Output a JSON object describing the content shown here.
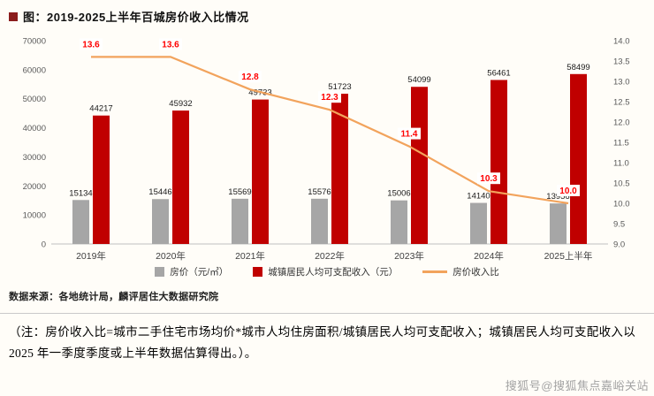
{
  "page": {
    "title": "图：2019-2025上半年百城房价收入比情况",
    "source": "数据来源：各地统计局，麟评居住大数据研究院",
    "note": "（注：房价收入比=城市二手住宅市场均价*城市人均住房面积/城镇居民人均可支配收入；城镇居民人均可支配收入以 2025 年一季度季度或上半年数据估算得出。）。",
    "watermark": "搜狐号@搜狐焦点嘉峪关站"
  },
  "chart_data": {
    "type": "bar+line",
    "title": "2019-2025上半年百城房价收入比情况",
    "categories": [
      "2019年",
      "2020年",
      "2021年",
      "2022年",
      "2023年",
      "2024年",
      "2025上半年"
    ],
    "series": [
      {
        "name": "房价（元/㎡）",
        "type": "bar",
        "axis": "left",
        "color": "#a6a6a6",
        "values": [
          15134,
          15446,
          15569,
          15576,
          15006,
          14140,
          13956
        ]
      },
      {
        "name": "城镇居民人均可支配收入（元）",
        "type": "bar",
        "axis": "left",
        "color": "#c00000",
        "values": [
          44217,
          45932,
          49733,
          51723,
          54099,
          56461,
          58499
        ]
      },
      {
        "name": "房价收入比",
        "type": "line",
        "axis": "right",
        "color": "#f2a35c",
        "label_color": "#ff0000",
        "values": [
          13.6,
          13.6,
          12.8,
          12.3,
          11.4,
          10.3,
          10.0
        ]
      }
    ],
    "left_axis": {
      "min": 0,
      "max": 70000,
      "step": 10000
    },
    "right_axis": {
      "min": 9.0,
      "max": 14.0,
      "step": 0.5
    },
    "legend_position": "bottom",
    "grid": false,
    "colors": {
      "bar_gray": "#a6a6a6",
      "bar_red": "#c00000",
      "line_orange": "#f2a35c",
      "line_label_red": "#ff0000"
    }
  }
}
